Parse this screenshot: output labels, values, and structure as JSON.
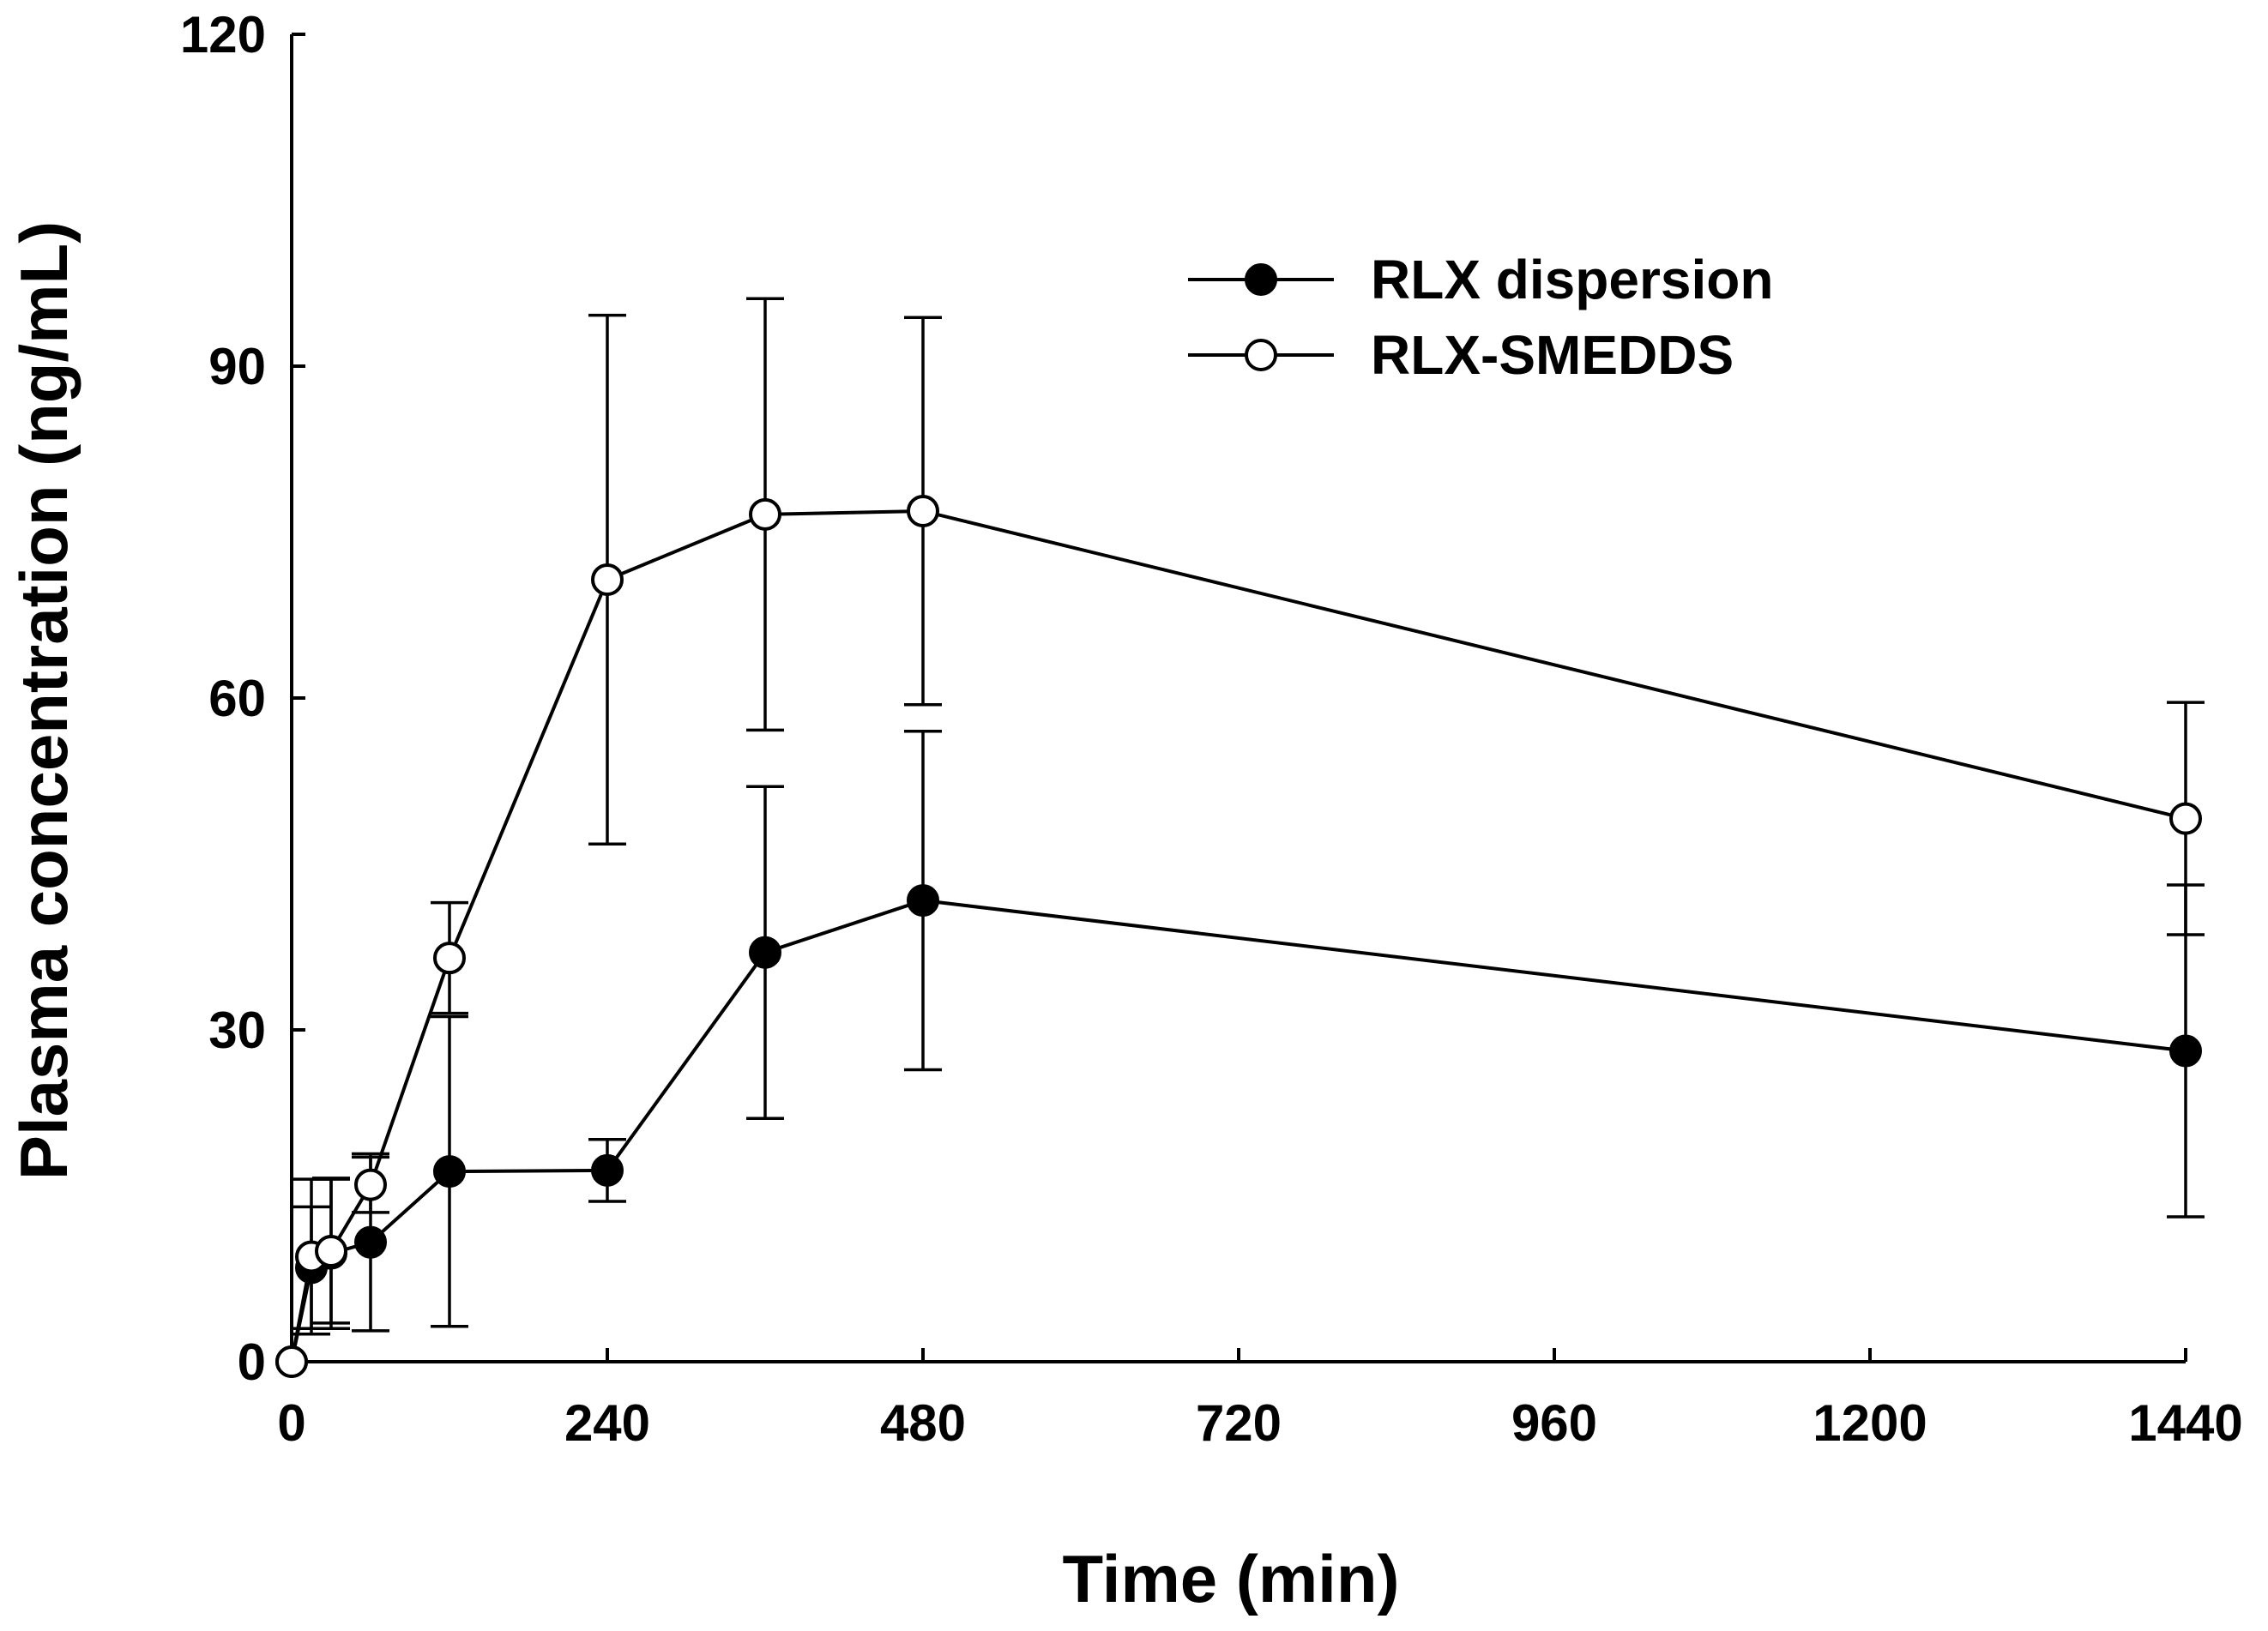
{
  "chart_data": {
    "type": "line",
    "title": "",
    "xlabel": "Time (min)",
    "ylabel": "Plasma concentration (ng/mL)",
    "xlim": [
      0,
      1440
    ],
    "ylim": [
      0,
      120
    ],
    "xticks": [
      0,
      240,
      480,
      720,
      960,
      1200,
      1440
    ],
    "yticks": [
      0,
      30,
      60,
      90,
      120
    ],
    "xtick_labels": [
      "0",
      "240",
      "480",
      "720",
      "960",
      "1200",
      "1440"
    ],
    "ytick_labels": [
      "0",
      "30",
      "60",
      "90",
      "120"
    ],
    "grid": false,
    "legend_position": "top-right",
    "series": [
      {
        "name": "RLX dispersion",
        "marker": "filled-circle",
        "color": "#000000",
        "x": [
          0,
          15,
          30,
          60,
          120,
          240,
          360,
          480,
          1440
        ],
        "y": [
          0,
          8.5,
          9.8,
          10.8,
          17.2,
          17.3,
          37.0,
          41.7,
          28.1
        ],
        "error": [
          0,
          5.5,
          6.8,
          8.0,
          14.0,
          2.8,
          15.0,
          15.3,
          15.0
        ]
      },
      {
        "name": "RLX-SMEDDS",
        "marker": "open-circle",
        "color": "#000000",
        "x": [
          0,
          15,
          30,
          60,
          120,
          240,
          360,
          480,
          1440
        ],
        "y": [
          0,
          9.5,
          10.0,
          16.0,
          36.5,
          70.7,
          76.6,
          76.9,
          49.1
        ],
        "error": [
          0,
          7.0,
          6.5,
          2.5,
          5.0,
          23.9,
          19.5,
          17.5,
          10.5
        ]
      }
    ]
  }
}
